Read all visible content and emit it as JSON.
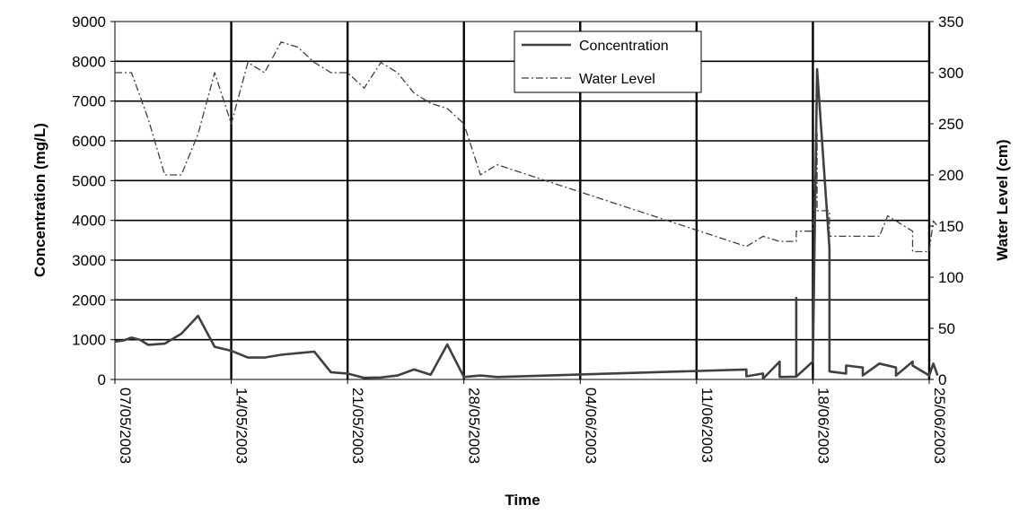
{
  "chart_data": {
    "type": "line",
    "xlabel": "Time",
    "ylabel": "Concentration (mg/L)",
    "y2label": "Water Level (cm)",
    "x_ticks": [
      "07/05/2003",
      "14/05/2003",
      "21/05/2003",
      "28/05/2003",
      "04/06/2003",
      "11/06/2003",
      "18/06/2003",
      "25/06/2003"
    ],
    "xlim": [
      "07/05/2003",
      "25/06/2003"
    ],
    "ylim": [
      0,
      9000
    ],
    "y_ticks": [
      "0",
      "1000",
      "2000",
      "3000",
      "4000",
      "5000",
      "6000",
      "7000",
      "8000",
      "9000"
    ],
    "y2lim": [
      0,
      350
    ],
    "y2_ticks": [
      "0",
      "50",
      "100",
      "150",
      "200",
      "250",
      "300",
      "350"
    ],
    "grid": "vertical and horizontal major lines",
    "legend_position": "top-center",
    "series": [
      {
        "name": "Concentration",
        "axis": "left",
        "style": "solid",
        "color": "#404040",
        "points": [
          [
            "07/05/2003",
            950
          ],
          [
            "07/05/2003 12:00",
            980
          ],
          [
            "08/05/2003",
            1050
          ],
          [
            "08/05/2003 12:00",
            1000
          ],
          [
            "09/05/2003",
            870
          ],
          [
            "10/05/2003",
            900
          ],
          [
            "11/05/2003",
            1150
          ],
          [
            "12/05/2003",
            1600
          ],
          [
            "13/05/2003",
            820
          ],
          [
            "14/05/2003",
            720
          ],
          [
            "15/05/2003",
            550
          ],
          [
            "16/05/2003",
            550
          ],
          [
            "17/05/2003",
            620
          ],
          [
            "18/05/2003",
            660
          ],
          [
            "19/05/2003",
            700
          ],
          [
            "20/05/2003",
            180
          ],
          [
            "21/05/2003",
            150
          ],
          [
            "22/05/2003",
            40
          ],
          [
            "23/05/2003",
            50
          ],
          [
            "24/05/2003",
            100
          ],
          [
            "25/05/2003",
            250
          ],
          [
            "26/05/2003",
            120
          ],
          [
            "27/05/2003",
            880
          ],
          [
            "28/05/2003",
            60
          ],
          [
            "29/05/2003",
            100
          ],
          [
            "30/05/2003",
            60
          ],
          [
            "14/06/2003",
            250
          ],
          [
            "14/06/2003",
            80
          ],
          [
            "15/06/2003",
            150
          ],
          [
            "15/06/2003",
            20
          ],
          [
            "16/06/2003",
            450
          ],
          [
            "16/06/2003",
            60
          ],
          [
            "17/06/2003",
            70
          ],
          [
            "17/06/2003",
            2050
          ],
          [
            "17/06/2003",
            70
          ],
          [
            "18/06/2003",
            450
          ],
          [
            "18/06/2003 06:00",
            7800
          ],
          [
            "19/06/2003",
            3300
          ],
          [
            "19/06/2003",
            200
          ],
          [
            "20/06/2003",
            150
          ],
          [
            "20/06/2003",
            350
          ],
          [
            "21/06/2003",
            300
          ],
          [
            "21/06/2003",
            100
          ],
          [
            "22/06/2003",
            400
          ],
          [
            "23/06/2003",
            300
          ],
          [
            "23/06/2003",
            100
          ],
          [
            "24/06/2003",
            450
          ],
          [
            "24/06/2003",
            350
          ],
          [
            "25/06/2003",
            100
          ],
          [
            "25/06/2003 06:00",
            400
          ],
          [
            "25/06/2003 12:00",
            100
          ]
        ]
      },
      {
        "name": "Water Level",
        "axis": "right",
        "style": "dash-dot",
        "color": "#404040",
        "points": [
          [
            "07/05/2003",
            300
          ],
          [
            "08/05/2003",
            300
          ],
          [
            "09/05/2003",
            255
          ],
          [
            "10/05/2003",
            200
          ],
          [
            "11/05/2003",
            200
          ],
          [
            "12/05/2003",
            240
          ],
          [
            "13/05/2003",
            300
          ],
          [
            "14/05/2003",
            250
          ],
          [
            "15/05/2003",
            310
          ],
          [
            "16/05/2003",
            300
          ],
          [
            "17/05/2003",
            330
          ],
          [
            "18/05/2003",
            325
          ],
          [
            "19/05/2003",
            310
          ],
          [
            "20/05/2003",
            300
          ],
          [
            "21/05/2003",
            300
          ],
          [
            "22/05/2003",
            285
          ],
          [
            "23/05/2003",
            310
          ],
          [
            "24/05/2003",
            300
          ],
          [
            "25/05/2003",
            280
          ],
          [
            "26/05/2003",
            270
          ],
          [
            "27/05/2003",
            265
          ],
          [
            "28/05/2003",
            250
          ],
          [
            "29/05/2003",
            200
          ],
          [
            "30/05/2003",
            210
          ],
          [
            "14/06/2003",
            130
          ],
          [
            "15/06/2003",
            140
          ],
          [
            "16/06/2003",
            135
          ],
          [
            "17/06/2003",
            135
          ],
          [
            "17/06/2003",
            145
          ],
          [
            "18/06/2003",
            145
          ],
          [
            "18/06/2003 06:00",
            240
          ],
          [
            "18/06/2003 06:00",
            165
          ],
          [
            "19/06/2003",
            165
          ],
          [
            "19/06/2003",
            140
          ],
          [
            "20/06/2003",
            140
          ],
          [
            "21/06/2003",
            140
          ],
          [
            "22/06/2003",
            140
          ],
          [
            "22/06/2003 12:00",
            160
          ],
          [
            "23/06/2003",
            155
          ],
          [
            "24/06/2003",
            145
          ],
          [
            "24/06/2003",
            125
          ],
          [
            "25/06/2003",
            125
          ],
          [
            "25/06/2003 06:00",
            155
          ],
          [
            "25/06/2003 12:00",
            150
          ]
        ]
      }
    ]
  }
}
